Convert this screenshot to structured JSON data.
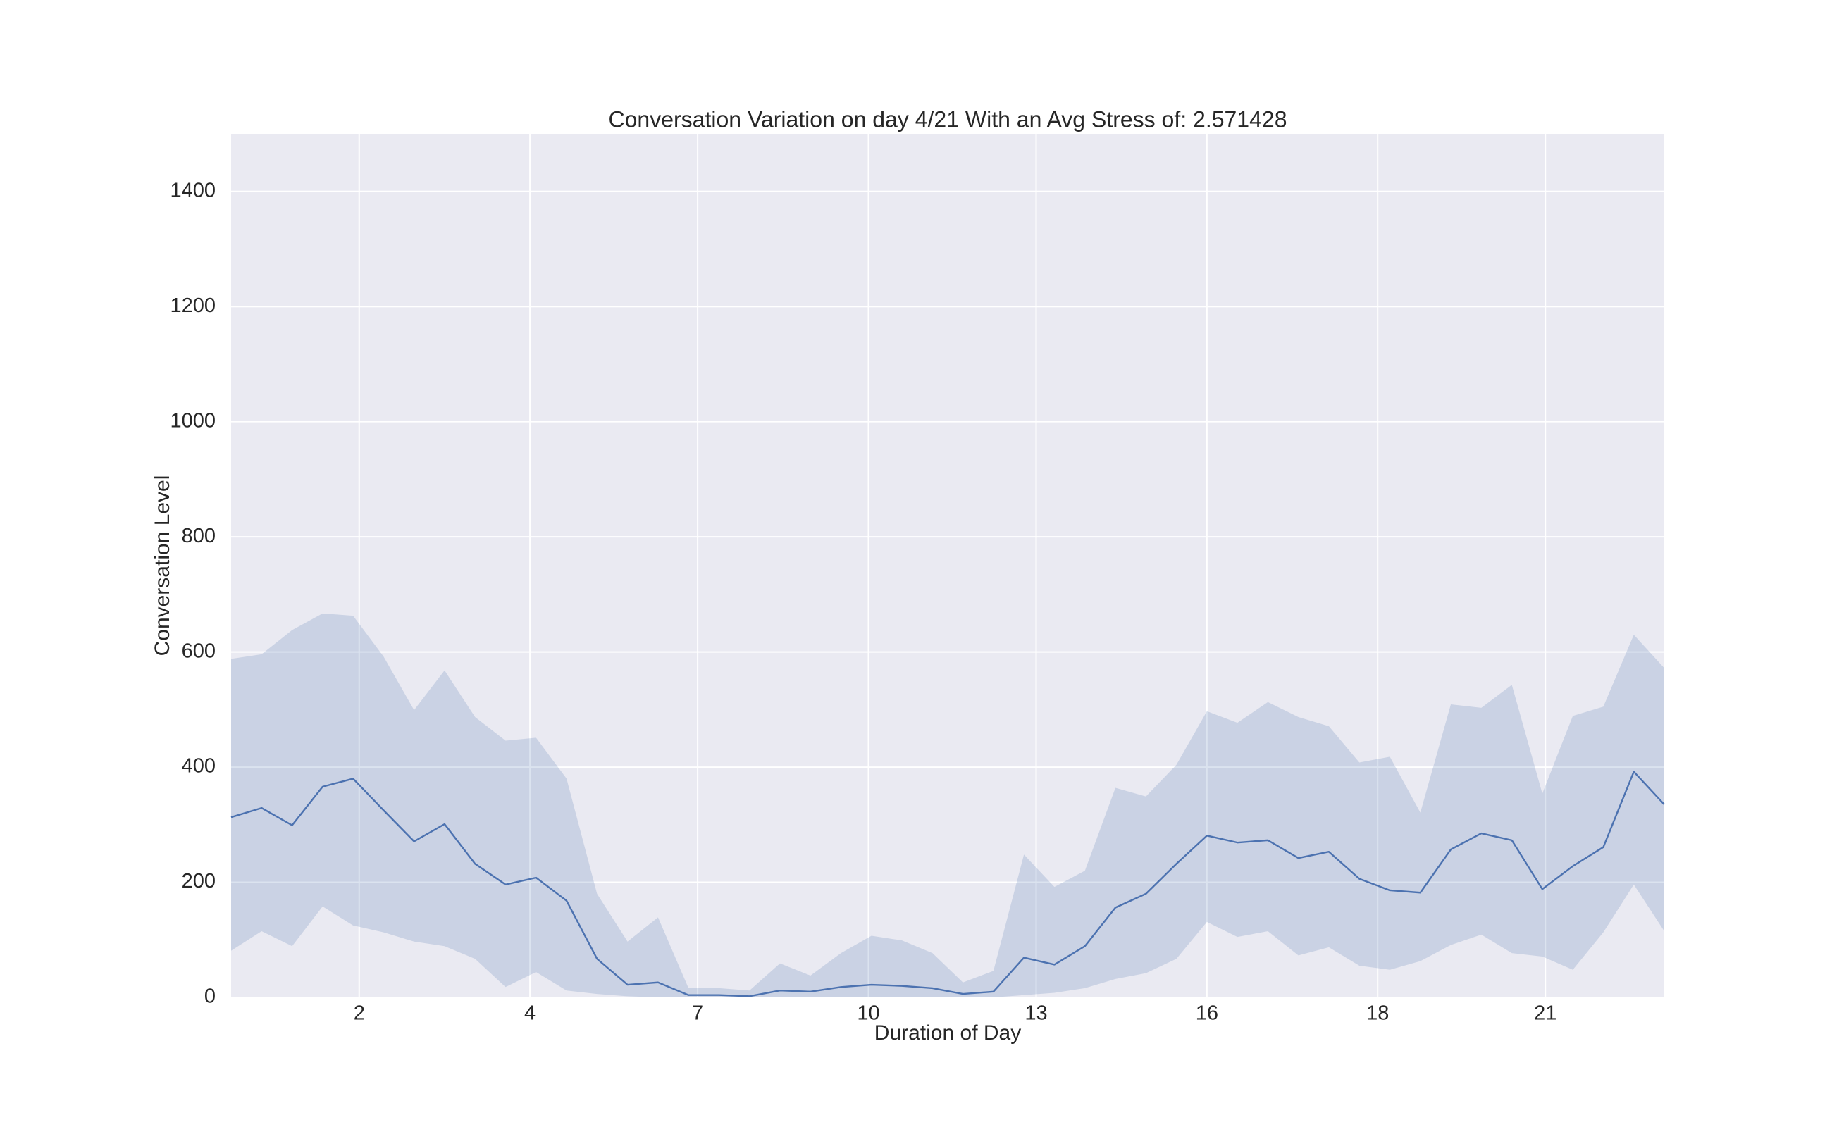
{
  "chart_data": {
    "type": "line",
    "title": "Conversation Variation on day 4/21 With an Avg Stress of: 2.571428",
    "xlabel": "Duration of Day",
    "ylabel": "Conversation Level",
    "x": [
      0,
      1,
      2,
      3,
      4,
      5,
      6,
      7,
      8,
      9,
      10,
      11,
      12,
      13,
      14,
      15,
      16,
      17,
      18,
      19,
      20,
      21,
      22,
      23,
      24,
      25,
      26,
      27,
      28,
      29,
      30,
      31,
      32,
      33,
      34,
      35,
      36,
      37,
      38,
      39,
      40,
      41,
      42,
      43,
      44,
      45,
      46,
      47
    ],
    "values": [
      313,
      329,
      299,
      366,
      380,
      325,
      271,
      301,
      232,
      196,
      208,
      168,
      67,
      22,
      26,
      4,
      4,
      2,
      12,
      10,
      18,
      22,
      20,
      16,
      6,
      10,
      69,
      57,
      89,
      156,
      180,
      232,
      281,
      269,
      273,
      242,
      253,
      206,
      186,
      182,
      257,
      285,
      273,
      188,
      228,
      261,
      392,
      335
    ],
    "ci_upper": [
      588,
      596,
      638,
      667,
      663,
      592,
      499,
      568,
      487,
      446,
      451,
      380,
      180,
      97,
      139,
      16,
      16,
      12,
      59,
      38,
      77,
      107,
      99,
      77,
      26,
      46,
      248,
      192,
      220,
      364,
      349,
      404,
      497,
      477,
      513,
      487,
      471,
      408,
      418,
      321,
      509,
      503,
      543,
      354,
      489,
      505,
      630,
      572
    ],
    "ci_lower": [
      81,
      115,
      89,
      158,
      125,
      113,
      97,
      89,
      67,
      18,
      44,
      12,
      6,
      2,
      0,
      0,
      0,
      0,
      0,
      0,
      0,
      0,
      0,
      0,
      0,
      0,
      4,
      8,
      16,
      32,
      42,
      67,
      131,
      105,
      115,
      73,
      87,
      55,
      48,
      63,
      91,
      109,
      77,
      71,
      48,
      113,
      196,
      115
    ],
    "color": "#4c72b0",
    "band_opacity": 0.2,
    "background": "#eaeaf2",
    "grid": true,
    "xlim": [
      0,
      47
    ],
    "ylim": [
      0,
      1500
    ],
    "xticks": [
      {
        "value": 4.2,
        "label": "2"
      },
      {
        "value": 9.8,
        "label": "4"
      },
      {
        "value": 15.3,
        "label": "7"
      },
      {
        "value": 20.9,
        "label": "10"
      },
      {
        "value": 26.4,
        "label": "13"
      },
      {
        "value": 32,
        "label": "16"
      },
      {
        "value": 37.6,
        "label": "18"
      },
      {
        "value": 43.1,
        "label": "21"
      }
    ],
    "yticks": [
      0,
      200,
      400,
      600,
      800,
      1000,
      1200,
      1400
    ]
  }
}
